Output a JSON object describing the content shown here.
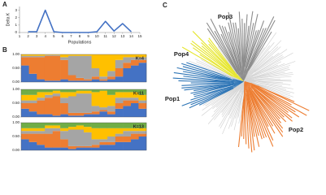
{
  "chart_data": [
    {
      "type": "line",
      "panel_label": "A",
      "ylabel": "Delta K",
      "xlabel": "Populations",
      "color": "#4472c4",
      "x": [
        2,
        3,
        4,
        5,
        6,
        7,
        8,
        9,
        10,
        11,
        12,
        13,
        14
      ],
      "values": [
        0.1,
        0.1,
        3,
        0.1,
        0,
        0,
        0,
        0,
        0.1,
        1.5,
        0.2,
        1.2,
        0.1
      ],
      "xlim": [
        1,
        15
      ],
      "xticks": [
        1,
        2,
        3,
        4,
        5,
        6,
        7,
        8,
        9,
        10,
        11,
        12,
        13,
        14,
        15
      ],
      "ylim": [
        0,
        3.5
      ],
      "yticks": [
        0,
        1,
        2,
        3
      ]
    },
    {
      "type": "stacked_bar",
      "panel_label": "B",
      "annotation": "K=4",
      "ylim": [
        0,
        1
      ],
      "yticks": [
        {
          "value": 0,
          "label": "0.00"
        },
        {
          "value": 0.5,
          "label": "0.50"
        },
        {
          "value": 1,
          "label": "1.00"
        }
      ],
      "series": [
        {
          "color": "#4472c4",
          "values": [
            0.6,
            0.3,
            0.1,
            0.05,
            0.05,
            0.1,
            0.05,
            0.05,
            0.05,
            0.1,
            0.05,
            0.1,
            0.2,
            0.5,
            0.6,
            0.7
          ]
        },
        {
          "color": "#ed7d31",
          "values": [
            0.3,
            0.6,
            0.8,
            0.9,
            0.9,
            0.7,
            0.2,
            0.1,
            0.05,
            0.1,
            0.05,
            0.1,
            0.3,
            0.2,
            0.2,
            0.1
          ]
        },
        {
          "color": "#a5a5a5",
          "values": [
            0.05,
            0.05,
            0.05,
            0.03,
            0.03,
            0.1,
            0.7,
            0.8,
            0.85,
            0.3,
            0.1,
            0.2,
            0.3,
            0.2,
            0.1,
            0.1
          ]
        },
        {
          "color": "#ffc000",
          "values": [
            0.05,
            0.05,
            0.05,
            0.02,
            0.02,
            0.1,
            0.05,
            0.05,
            0.05,
            0.5,
            0.8,
            0.6,
            0.2,
            0.1,
            0.1,
            0.1
          ]
        }
      ]
    },
    {
      "type": "stacked_bar",
      "annotation": "K=11",
      "ylim": [
        0,
        1
      ],
      "yticks": [
        {
          "value": 0,
          "label": "0.00"
        },
        {
          "value": 0.5,
          "label": "0.50"
        },
        {
          "value": 1,
          "label": "1.00"
        }
      ],
      "series": [
        {
          "color": "#4472c4",
          "values": [
            0.3,
            0.2,
            0.1,
            0.1,
            0.05,
            0.1,
            0.05,
            0.05,
            0.1,
            0.1,
            0.2,
            0.1,
            0.3,
            0.4,
            0.5,
            0.3
          ]
        },
        {
          "color": "#ed7d31",
          "values": [
            0.2,
            0.3,
            0.5,
            0.6,
            0.7,
            0.4,
            0.1,
            0.1,
            0.05,
            0.1,
            0.05,
            0.1,
            0.2,
            0.2,
            0.1,
            0.2
          ]
        },
        {
          "color": "#a5a5a5",
          "values": [
            0.1,
            0.1,
            0.1,
            0.1,
            0.1,
            0.2,
            0.6,
            0.7,
            0.7,
            0.2,
            0.1,
            0.2,
            0.2,
            0.1,
            0.1,
            0.1
          ]
        },
        {
          "color": "#ffc000",
          "values": [
            0.2,
            0.2,
            0.2,
            0.1,
            0.1,
            0.2,
            0.15,
            0.1,
            0.1,
            0.5,
            0.6,
            0.4,
            0.2,
            0.2,
            0.2,
            0.2
          ]
        },
        {
          "color": "#70ad47",
          "values": [
            0.2,
            0.2,
            0.1,
            0.1,
            0.05,
            0.1,
            0.1,
            0.05,
            0.05,
            0.1,
            0.05,
            0.2,
            0.1,
            0.1,
            0.1,
            0.2
          ]
        }
      ]
    },
    {
      "type": "stacked_bar",
      "annotation": "K=13",
      "ylim": [
        0,
        1
      ],
      "yticks": [
        {
          "value": 0,
          "label": "0.00"
        },
        {
          "value": 0.5,
          "label": "0.50"
        },
        {
          "value": 1,
          "label": "1.00"
        }
      ],
      "series": [
        {
          "color": "#4472c4",
          "values": [
            0.4,
            0.3,
            0.2,
            0.1,
            0.1,
            0.1,
            0.05,
            0.1,
            0.1,
            0.1,
            0.2,
            0.2,
            0.3,
            0.3,
            0.4,
            0.5
          ]
        },
        {
          "color": "#ed7d31",
          "values": [
            0.2,
            0.3,
            0.4,
            0.5,
            0.6,
            0.3,
            0.1,
            0.05,
            0.05,
            0.1,
            0.1,
            0.1,
            0.2,
            0.2,
            0.2,
            0.1
          ]
        },
        {
          "color": "#a5a5a5",
          "values": [
            0.1,
            0.1,
            0.1,
            0.2,
            0.1,
            0.3,
            0.6,
            0.6,
            0.5,
            0.2,
            0.1,
            0.2,
            0.1,
            0.2,
            0.1,
            0.1
          ]
        },
        {
          "color": "#ffc000",
          "values": [
            0.1,
            0.1,
            0.1,
            0.1,
            0.1,
            0.1,
            0.1,
            0.15,
            0.2,
            0.4,
            0.4,
            0.3,
            0.2,
            0.1,
            0.1,
            0.1
          ]
        },
        {
          "color": "#70ad47",
          "values": [
            0.2,
            0.2,
            0.2,
            0.1,
            0.1,
            0.2,
            0.15,
            0.1,
            0.15,
            0.2,
            0.2,
            0.2,
            0.2,
            0.2,
            0.2,
            0.2
          ]
        }
      ]
    }
  ],
  "tree": {
    "panel_label": "C",
    "clusters": [
      {
        "label": "Pop1",
        "color": "#2e75b6"
      },
      {
        "label": "Pop2",
        "color": "#ed7d31"
      },
      {
        "label": "Pop3",
        "color": "#8c8c8c"
      },
      {
        "label": "Pop4",
        "color": "#e6e62e"
      }
    ]
  }
}
